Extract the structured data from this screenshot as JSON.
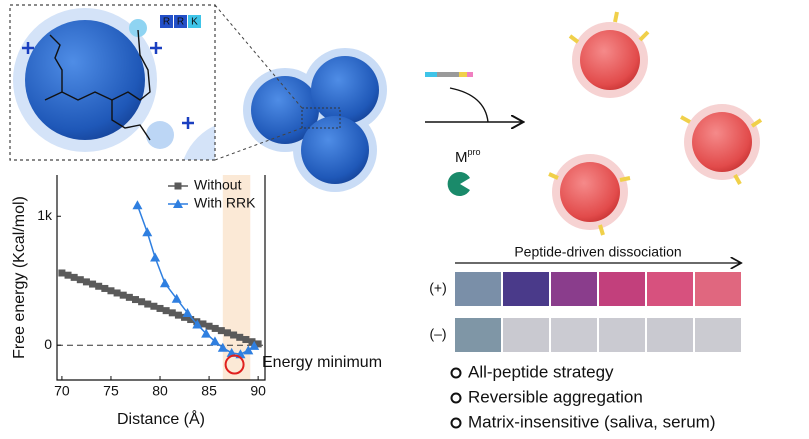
{
  "chart_data": {
    "type": "line",
    "xlabel": "Distance (Å)",
    "ylabel": "Free energy (Kcal/mol)",
    "xlim": [
      69.5,
      90.7
    ],
    "ylim": [
      -270,
      1320
    ],
    "xticks": [
      70,
      75,
      80,
      85,
      90
    ],
    "yticks": [
      0,
      {
        "value": 1000,
        "label": "1k"
      }
    ],
    "zero_line": 0,
    "highlight_x": [
      86.4,
      89.2
    ],
    "minimum": {
      "x": 87.6,
      "y": -150,
      "label": "Energy minimum"
    },
    "series": [
      {
        "name": "Without",
        "color": "#5a5a5a",
        "marker": "square",
        "x": [
          70,
          70.625,
          71.25,
          71.875,
          72.5,
          73.125,
          73.75,
          74.375,
          75,
          75.625,
          76.25,
          76.875,
          77.5,
          78.125,
          78.75,
          79.375,
          80,
          80.625,
          81.25,
          81.875,
          82.5,
          83.125,
          83.75,
          84.375,
          85,
          85.625,
          86.25,
          86.875,
          87.5,
          88.125,
          88.75,
          89.375,
          90
        ],
        "values": [
          560,
          543,
          526,
          508,
          491,
          474,
          457,
          440,
          422,
          405,
          388,
          371,
          354,
          337,
          319,
          302,
          285,
          268,
          251,
          233,
          216,
          199,
          182,
          165,
          147,
          130,
          113,
          96,
          79,
          61,
          44,
          27,
          10
        ]
      },
      {
        "name": "With RRK",
        "color": "#2f7fe0",
        "marker": "triangle",
        "x": [
          77.7,
          78.7,
          79.5,
          80.5,
          81.7,
          82.8,
          83.8,
          84.7,
          85.6,
          86.4,
          87.3,
          88.2,
          89.0,
          89.6
        ],
        "values": [
          1085,
          876,
          680,
          480,
          360,
          250,
          160,
          90,
          30,
          -20,
          -60,
          -70,
          -40,
          -5
        ]
      }
    ]
  },
  "inset": {
    "residues": [
      "R",
      "R",
      "K"
    ],
    "residue_colors": [
      "#2350c8",
      "#2350c8",
      "#3fc4e8"
    ]
  },
  "scheme": {
    "enzyme": "M",
    "enzyme_sup": "pro"
  },
  "colorimetric": {
    "title": "Peptide-driven dissociation",
    "rows": [
      {
        "label": "(+)",
        "colors": [
          "#7a8fa8",
          "#4a3a8a",
          "#8a3d8c",
          "#c2407c",
          "#d7517e",
          "#e0677f"
        ]
      },
      {
        "label": "(–)",
        "colors": [
          "#7f96a6",
          "#c9c9d0",
          "#cbcbd2",
          "#cacad1",
          "#c9c9d0",
          "#cbcbd1"
        ]
      }
    ]
  },
  "features": [
    "All-peptide strategy",
    "Reversible aggregation",
    "Matrix-insensitive (saliva, serum)"
  ]
}
